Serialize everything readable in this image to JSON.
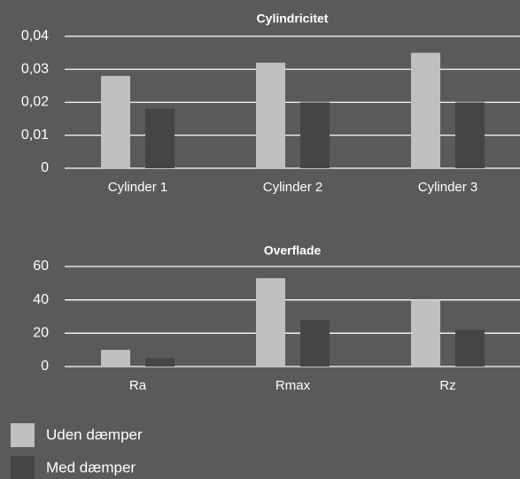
{
  "chart_data": [
    {
      "type": "bar",
      "title": "Cylindricitet",
      "categories": [
        "Cylinder 1",
        "Cylinder 2",
        "Cylinder 3"
      ],
      "series": [
        {
          "name": "Uden dæmper",
          "color": "#c0c0c0",
          "values": [
            0.028,
            0.032,
            0.035
          ]
        },
        {
          "name": "Med dæmper",
          "color": "#454545",
          "values": [
            0.018,
            0.02,
            0.02
          ]
        }
      ],
      "ylim": [
        0,
        0.04
      ],
      "yticks": [
        0,
        {
          "value": 0.01,
          "label": "0,01"
        },
        {
          "value": 0.02,
          "label": "0,02"
        },
        {
          "value": 0.03,
          "label": "0,03"
        },
        {
          "value": 0.04,
          "label": "0,04"
        }
      ],
      "grid": true
    },
    {
      "type": "bar",
      "title": "Overflade",
      "categories": [
        "Ra",
        "Rmax",
        "Rz"
      ],
      "series": [
        {
          "color": "#c0c0c0",
          "values": [
            10,
            53,
            40
          ]
        },
        {
          "color": "#454545",
          "values": [
            5,
            28,
            22
          ]
        }
      ],
      "ylim": [
        0,
        60
      ],
      "yticks": [
        0,
        20,
        40,
        60
      ],
      "grid": true
    }
  ]
}
